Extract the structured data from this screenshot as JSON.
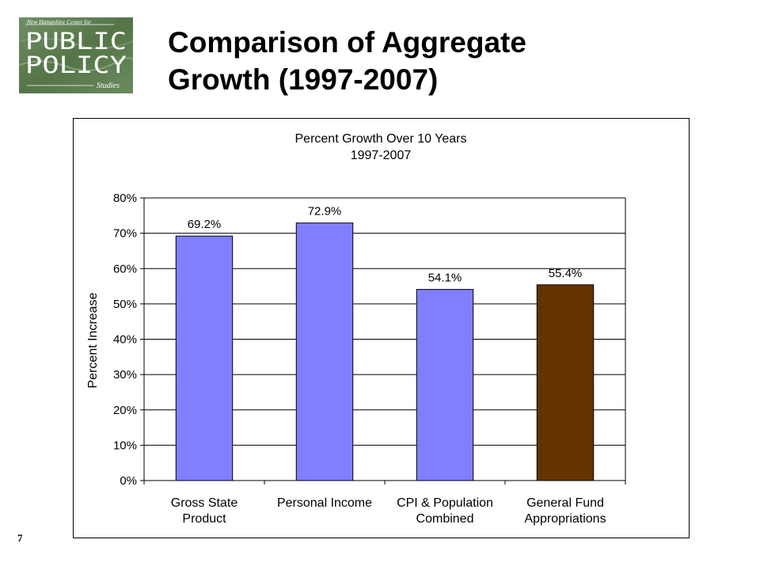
{
  "logo": {
    "top_text": "New Hampshire Center for",
    "line1": "PUBLIC",
    "line2": "POLICY",
    "bottom_text": "Studies",
    "background_color": "#5e7f56"
  },
  "slide": {
    "title_line1": "Comparison of Aggregate",
    "title_line2": "Growth (1997-2007)",
    "page_number": "7"
  },
  "chart_data": {
    "type": "bar",
    "title": "Percent Growth Over 10 Years",
    "subtitle": "1997-2007",
    "ylabel": "Percent Increase",
    "xlabel": "",
    "ylim": [
      0,
      80
    ],
    "y_ticks": [
      "0%",
      "10%",
      "20%",
      "30%",
      "40%",
      "50%",
      "60%",
      "70%",
      "80%"
    ],
    "categories": [
      [
        "Gross State",
        "Product"
      ],
      [
        "Personal Income"
      ],
      [
        "CPI & Population",
        "Combined"
      ],
      [
        "General Fund",
        "Appropriations"
      ]
    ],
    "values": [
      69.2,
      72.9,
      54.1,
      55.4
    ],
    "data_labels": [
      "69.2%",
      "72.9%",
      "54.1%",
      "55.4%"
    ],
    "colors": [
      "#8080ff",
      "#8080ff",
      "#8080ff",
      "#663300"
    ],
    "grid": true,
    "legend": "none"
  }
}
